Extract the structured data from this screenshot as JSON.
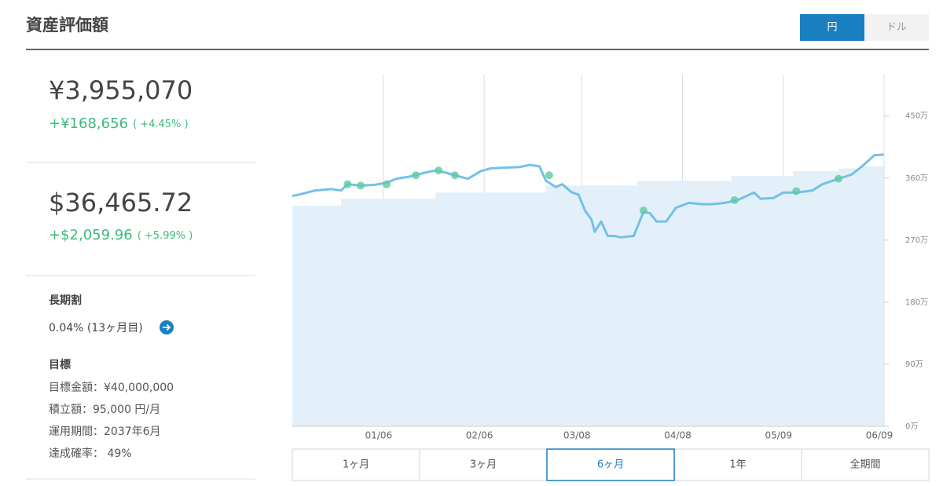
{
  "header": {
    "title": "資産評価額",
    "currency_toggle": [
      "円",
      "ドル"
    ],
    "currency_selected": 0
  },
  "summary": {
    "jpy": {
      "value": "¥3,955,070",
      "change": "+¥168,656",
      "change_pct": "( +4.45% )"
    },
    "usd": {
      "value": "$36,465.72",
      "change": "+$2,059.96",
      "change_pct": "( +5.99% )"
    }
  },
  "long_term_discount": {
    "title": "長期割",
    "value": "0.04% (13ヶ月目)"
  },
  "goal": {
    "title": "目標",
    "lines": [
      "目標金額：¥40,000,000",
      "積立額：95,000 円/月",
      "運用期間：2037年6月",
      "達成確率： 49%"
    ]
  },
  "range_buttons": {
    "labels": [
      "1ヶ月",
      "3ヶ月",
      "6ヶ月",
      "1年",
      "全期間"
    ],
    "selected": 2
  },
  "chart_data": {
    "type": "line",
    "xlim": [
      0,
      182
    ],
    "ylim": [
      0,
      510
    ],
    "xticks": [
      {
        "value": 28,
        "label": "01/06"
      },
      {
        "value": 59,
        "label": "02/06"
      },
      {
        "value": 89,
        "label": "03/08"
      },
      {
        "value": 120,
        "label": "04/08"
      },
      {
        "value": 151,
        "label": "05/09"
      },
      {
        "value": 182,
        "label": "06/09"
      }
    ],
    "yticks": [
      {
        "value": 0,
        "label": "0万"
      },
      {
        "value": 90,
        "label": "90万"
      },
      {
        "value": 180,
        "label": "180万"
      },
      {
        "value": 270,
        "label": "270万"
      },
      {
        "value": 360,
        "label": "360万"
      },
      {
        "value": 450,
        "label": "450万"
      }
    ],
    "grid": true,
    "series": [
      {
        "type": "step-area",
        "color": "#e3f0f9",
        "x": [
          0,
          15,
          44,
          78,
          106,
          135,
          154,
          168,
          175,
          182
        ],
        "values": [
          320,
          330,
          339,
          349,
          356,
          363,
          370,
          374,
          377,
          377
        ]
      },
      {
        "type": "line",
        "color": "#74c0e8",
        "x": [
          0,
          3,
          7,
          12,
          15,
          17,
          21,
          25,
          29,
          32,
          36,
          41,
          44,
          47,
          50,
          54,
          58,
          61,
          65,
          70,
          73,
          76,
          78,
          81,
          83,
          86,
          88,
          90,
          92,
          93,
          95,
          97,
          99,
          101,
          105,
          108,
          110,
          112,
          115,
          118,
          122,
          126,
          129,
          133,
          137,
          142,
          144,
          148,
          151,
          155,
          160,
          163,
          168,
          172,
          175,
          179,
          182
        ],
        "values": [
          334,
          337,
          342,
          344,
          342,
          351,
          349,
          350,
          353,
          359,
          362,
          368,
          371,
          368,
          364,
          359,
          370,
          374,
          375,
          376,
          379,
          377,
          356,
          347,
          351,
          339,
          336,
          313,
          300,
          282,
          297,
          276,
          276,
          274,
          276,
          311,
          309,
          297,
          297,
          317,
          324,
          322,
          322,
          324,
          328,
          339,
          330,
          331,
          339,
          339,
          342,
          351,
          359,
          365,
          376,
          393,
          394
        ]
      },
      {
        "type": "scatter",
        "color": "#5ccaa0",
        "x": [
          17,
          21,
          29,
          38,
          45,
          50,
          79,
          108,
          136,
          155,
          168
        ],
        "values": [
          351,
          349,
          351,
          364,
          371,
          364,
          364,
          313,
          328,
          341,
          359
        ]
      }
    ]
  }
}
